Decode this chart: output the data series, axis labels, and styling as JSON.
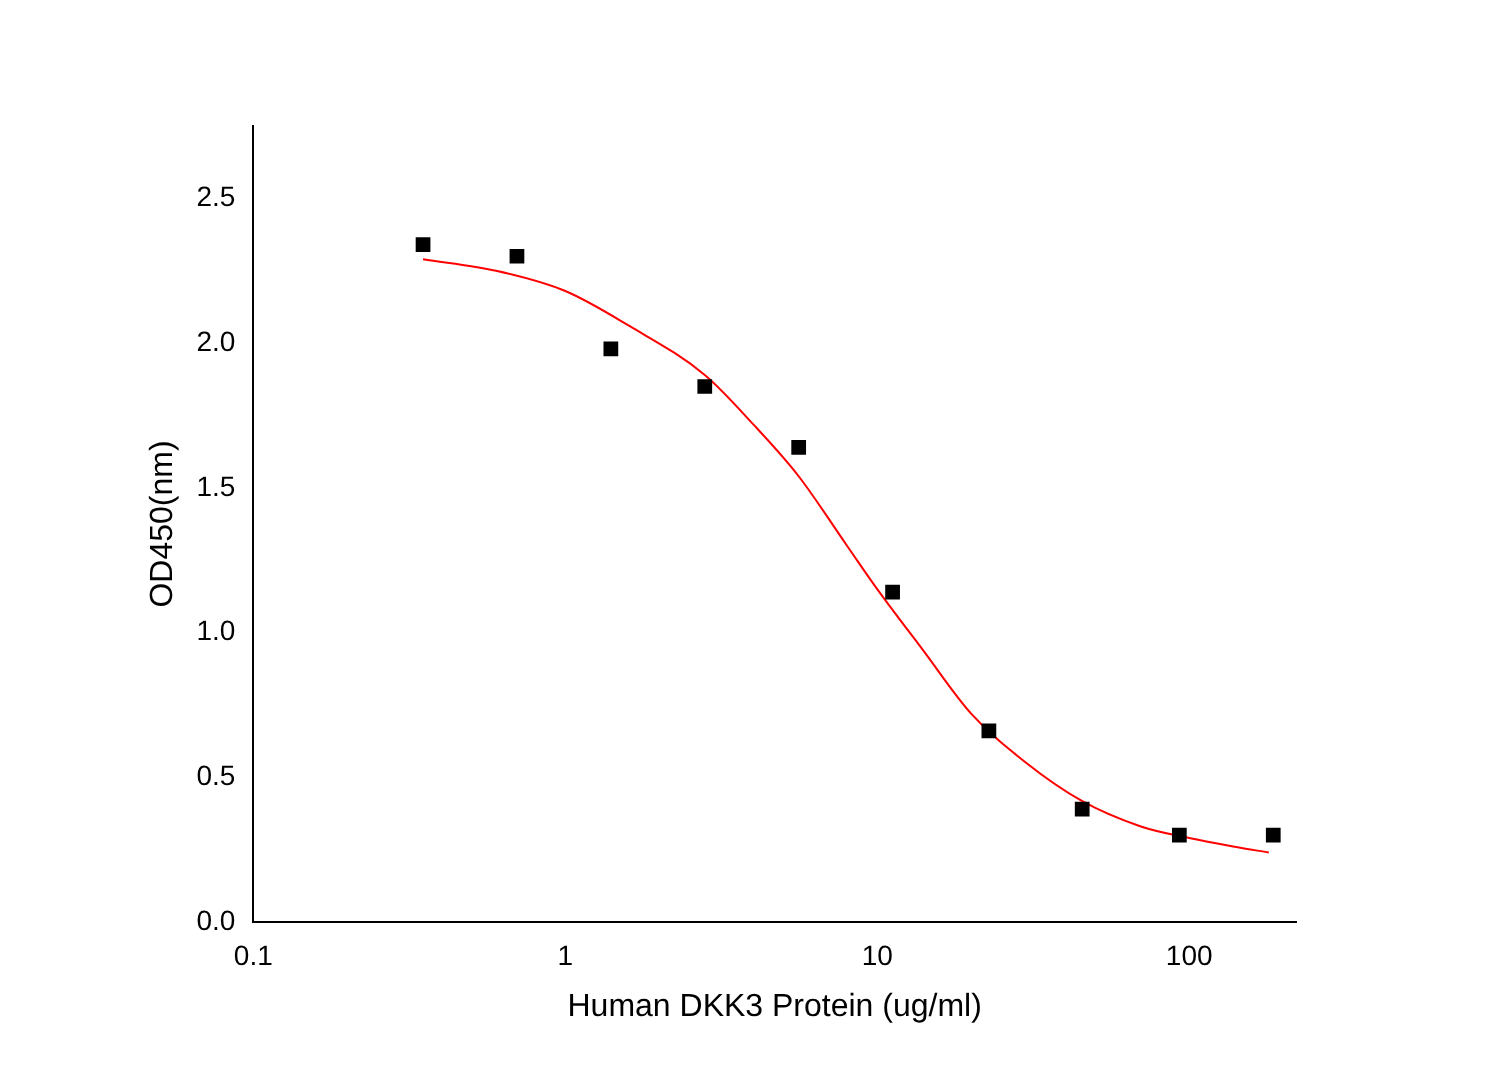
{
  "chart_data": {
    "type": "scatter",
    "xlabel": "Human DKK3 Protein (ug/ml)",
    "ylabel": "OD450(nm)",
    "log": "x",
    "xlim": [
      0.1,
      220
    ],
    "xticks": [
      0.1,
      1,
      10,
      100
    ],
    "ylim": [
      0,
      2.75
    ],
    "yticks": [
      {
        "value": 0,
        "label": "0.0"
      },
      {
        "value": 0.5,
        "label": "0.5"
      },
      {
        "value": 1,
        "label": "1.0"
      },
      {
        "value": 1.5,
        "label": "1.5"
      },
      {
        "value": 2,
        "label": "2.0"
      },
      {
        "value": 2.5,
        "label": "2.5"
      }
    ],
    "grid": false,
    "legend": false,
    "series": [
      {
        "type": "scatter",
        "color": "#000000",
        "marker": "square",
        "x": [
          0.35,
          0.7,
          1.4,
          2.8,
          5.6,
          11.2,
          22.8,
          45.4,
          93,
          186
        ],
        "values": [
          2.34,
          2.3,
          1.98,
          1.85,
          1.64,
          1.14,
          0.66,
          0.39,
          0.3,
          0.3
        ]
      },
      {
        "type": "line",
        "color": "#ff0000",
        "marker": "none",
        "x": [
          0.35,
          0.6,
          1,
          1.6,
          2.8,
          4,
          5.6,
          8,
          10,
          14,
          20,
          30,
          45,
          70,
          100,
          140,
          180
        ],
        "values": [
          2.29,
          2.25,
          2.18,
          2.06,
          1.89,
          1.72,
          1.54,
          1.3,
          1.15,
          0.94,
          0.72,
          0.55,
          0.42,
          0.33,
          0.29,
          0.26,
          0.24
        ]
      }
    ]
  }
}
